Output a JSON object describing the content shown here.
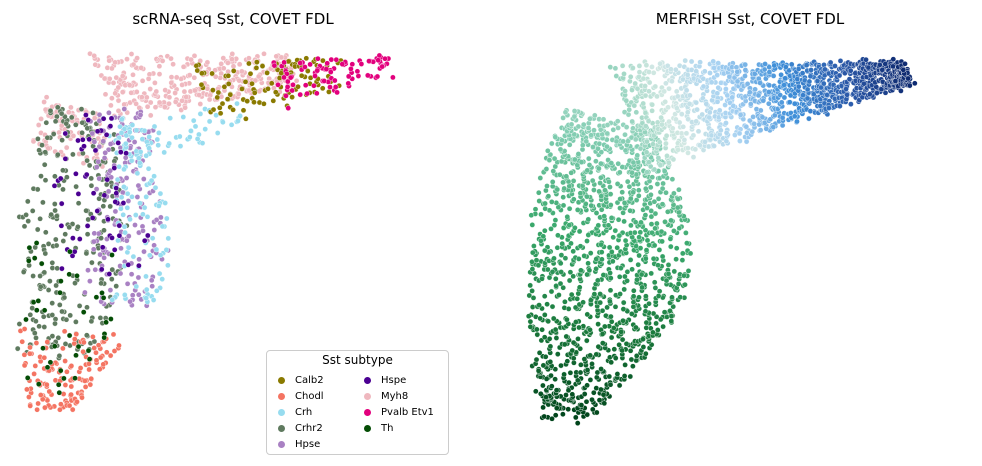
{
  "charts": [
    {
      "id": "left",
      "type": "scatter",
      "title": "scRNA-seq Sst, COVET FDL",
      "xlabel": "",
      "ylabel": "",
      "axes_visible": false,
      "color_by": "Sst subtype",
      "legend": {
        "title": "Sst subtype",
        "placement": "lower-right",
        "entries": [
          {
            "label": "Calb2",
            "color": "#8a7a00"
          },
          {
            "label": "Chodl",
            "color": "#f47462"
          },
          {
            "label": "Crh",
            "color": "#97dcef"
          },
          {
            "label": "Crhr2",
            "color": "#5f7a5f"
          },
          {
            "label": "Hpse",
            "color": "#a981c3"
          },
          {
            "label": "Hspe",
            "color": "#4b0092"
          },
          {
            "label": "Myh8",
            "color": "#efb8bf"
          },
          {
            "label": "Pvalb Etv1",
            "color": "#e2007d"
          },
          {
            "label": "Th",
            "color": "#044d05"
          }
        ]
      }
    },
    {
      "id": "right",
      "type": "scatter",
      "title": "MERFISH Sst, COVET FDL",
      "xlabel": "",
      "ylabel": "",
      "axes_visible": false,
      "color_by": "continuous pseudotime-like gradient",
      "colormap": [
        "#00441b",
        "#1a7a3c",
        "#3aa86c",
        "#7fccb0",
        "#d2e8e3",
        "#a8d2f2",
        "#3e8ed8",
        "#2a58a8",
        "#0e2a70"
      ]
    }
  ],
  "chart_data": [
    {
      "type": "scatter",
      "title": "scRNA-seq Sst, COVET FDL",
      "xlabel": "",
      "ylabel": "",
      "series": [
        {
          "name": "Calb2",
          "color": "#8a7a00",
          "region": "upper-right arm"
        },
        {
          "name": "Chodl",
          "color": "#f47462",
          "region": "bottom tip"
        },
        {
          "name": "Crh",
          "color": "#97dcef",
          "region": "middle-right"
        },
        {
          "name": "Crhr2",
          "color": "#5f7a5f",
          "region": "left lobe"
        },
        {
          "name": "Hpse",
          "color": "#a981c3",
          "region": "center"
        },
        {
          "name": "Hspe",
          "color": "#4b0092",
          "region": "center-left"
        },
        {
          "name": "Myh8",
          "color": "#efb8bf",
          "region": "top"
        },
        {
          "name": "Pvalb Etv1",
          "color": "#e2007d",
          "region": "top-right tip"
        },
        {
          "name": "Th",
          "color": "#044d05",
          "region": "lower-left"
        }
      ]
    },
    {
      "type": "scatter",
      "title": "MERFISH Sst, COVET FDL",
      "xlabel": "",
      "ylabel": "",
      "colormap": "green-to-blue"
    }
  ]
}
